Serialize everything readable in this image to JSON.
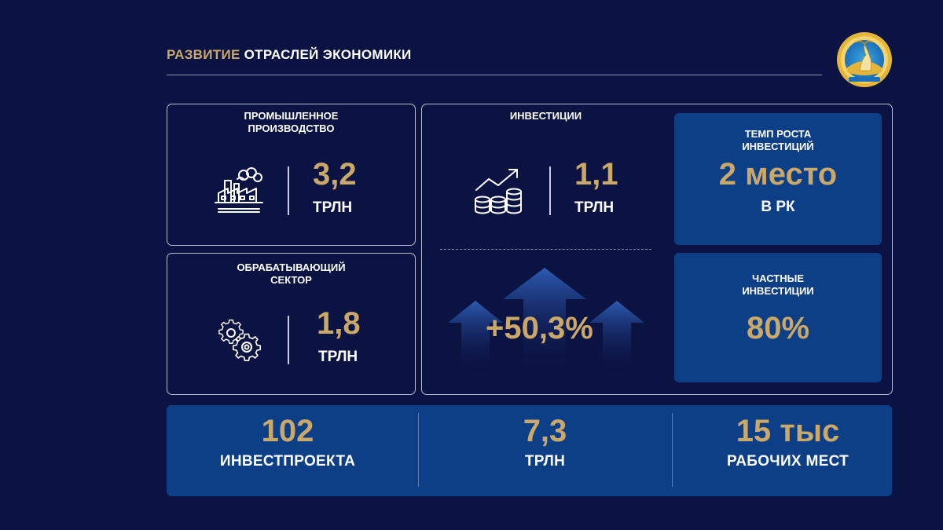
{
  "header": {
    "title_accent": "РАЗВИТИЕ",
    "title_rest": "ОТРАСЛЕЙ ЭКОНОМИКИ"
  },
  "industrial": {
    "label_line1": "ПРОМЫШЛЕННОЕ",
    "label_line2": "ПРОИЗВОДСТВО",
    "value": "3,2",
    "unit": "ТРЛН",
    "icon": "factory-icon"
  },
  "manufacturing": {
    "label_line1": "ОБРАБАТЫВАЮЩИЙ",
    "label_line2": "СЕКТОР",
    "value": "1,8",
    "unit": "ТРЛН",
    "icon": "gears-icon"
  },
  "investments": {
    "label": "ИНВЕСТИЦИИ",
    "value": "1,1",
    "unit": "ТРЛН",
    "growth": "+50,3%",
    "icon": "growth-coins-icon"
  },
  "investment_growth_rate": {
    "label_line1": "ТЕМП РОСТА",
    "label_line2": "ИНВЕСТИЦИЙ",
    "value": "2 место",
    "sub": "В РК"
  },
  "private_investments": {
    "label_line1": "ЧАСТНЫЕ",
    "label_line2": "ИНВЕСТИЦИИ",
    "value": "80%"
  },
  "bottom": [
    {
      "value": "102",
      "label": "ИНВЕСТПРОЕКТА"
    },
    {
      "value": "7,3",
      "label": "ТРЛН"
    },
    {
      "value": "15 тыс",
      "label": "РАБОЧИХ МЕСТ"
    }
  ],
  "colors": {
    "background": "#0b1343",
    "accent_gold": "#c9a86a",
    "box_blue": "#0d3f86"
  }
}
